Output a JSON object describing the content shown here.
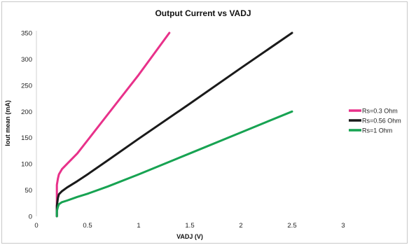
{
  "chart_data": {
    "type": "line",
    "title": "Output Current vs VADJ",
    "xlabel": "VADJ (V)",
    "ylabel": "Iout mean (mA)",
    "xlim": [
      0,
      3
    ],
    "ylim": [
      0,
      350
    ],
    "x_ticks": [
      "0",
      "0.5",
      "1",
      "1.5",
      "2",
      "2.5",
      "3"
    ],
    "y_ticks": [
      "0",
      "50",
      "100",
      "150",
      "200",
      "250",
      "300",
      "350"
    ],
    "grid": false,
    "legend_position": "right",
    "series": [
      {
        "name": "Rs=0.3 Ohm",
        "color": "#e8318a",
        "x": [
          0.2,
          0.2,
          0.2,
          0.21,
          0.22,
          0.25,
          0.3,
          0.4,
          0.5,
          0.7,
          1.0,
          1.3
        ],
        "y": [
          0,
          30,
          60,
          72,
          80,
          90,
          100,
          120,
          145,
          195,
          270,
          350
        ]
      },
      {
        "name": "Rs=0.56 Ohm",
        "color": "#1a1a1a",
        "x": [
          0.2,
          0.2,
          0.21,
          0.22,
          0.25,
          0.3,
          0.4,
          0.5,
          0.7,
          1.0,
          1.5,
          2.0,
          2.5
        ],
        "y": [
          0,
          20,
          35,
          42,
          48,
          55,
          67,
          80,
          107,
          148,
          215,
          283,
          350
        ]
      },
      {
        "name": "Rs=1 Ohm",
        "color": "#17a352",
        "x": [
          0.2,
          0.2,
          0.21,
          0.22,
          0.25,
          0.3,
          0.4,
          0.5,
          0.7,
          1.0,
          1.5,
          2.0,
          2.5
        ],
        "y": [
          0,
          10,
          18,
          23,
          27,
          30,
          37,
          43,
          57,
          80,
          120,
          160,
          200
        ]
      }
    ]
  }
}
